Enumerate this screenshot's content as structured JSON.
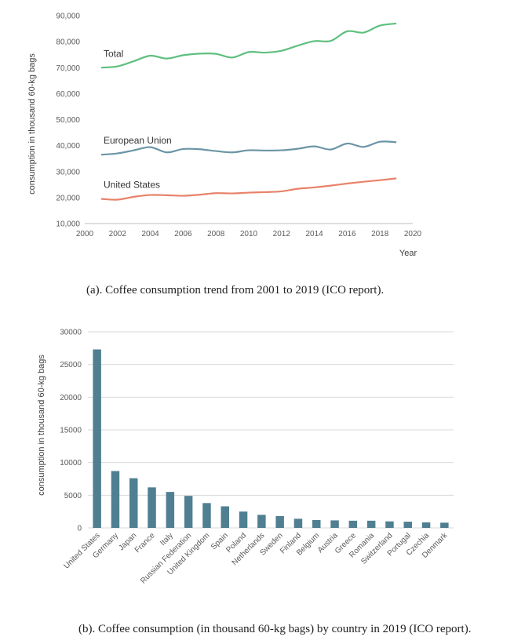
{
  "chart_data": [
    {
      "type": "line",
      "title": "",
      "xlabel": "Year",
      "ylabel": "consumption in thousand 60-kg bags",
      "xlim": [
        2000,
        2020
      ],
      "ylim": [
        10000,
        90000
      ],
      "x_ticks": [
        "2000",
        "2002",
        "2004",
        "2006",
        "2008",
        "2010",
        "2012",
        "2014",
        "2016",
        "2018",
        "2020"
      ],
      "y_ticks": [
        "10,000",
        "20,000",
        "30,000",
        "40,000",
        "50,000",
        "60,000",
        "70,000",
        "80,000",
        "90,000"
      ],
      "x": [
        2001,
        2002,
        2003,
        2004,
        2005,
        2006,
        2007,
        2008,
        2009,
        2010,
        2011,
        2012,
        2013,
        2014,
        2015,
        2016,
        2017,
        2018,
        2019
      ],
      "series": [
        {
          "name": "Total",
          "color": "#5fbf7f",
          "values": [
            70000,
            70500,
            72500,
            74600,
            73500,
            74800,
            75400,
            75300,
            73900,
            76000,
            75800,
            76500,
            78500,
            80200,
            80300,
            84000,
            83500,
            86200,
            87000
          ]
        },
        {
          "name": "European Union",
          "color": "#6b95a6",
          "values": [
            36500,
            37000,
            38200,
            39400,
            37400,
            38700,
            38600,
            37900,
            37400,
            38200,
            38100,
            38200,
            38800,
            39700,
            38500,
            40800,
            39500,
            41500,
            41300
          ]
        },
        {
          "name": "United States",
          "color": "#e8826a",
          "values": [
            19500,
            19200,
            20300,
            21000,
            20900,
            20700,
            21100,
            21700,
            21600,
            21900,
            22100,
            22400,
            23400,
            23900,
            24600,
            25400,
            26100,
            26700,
            27400
          ]
        }
      ],
      "grid": false,
      "legend": "inline-labels"
    },
    {
      "type": "bar",
      "title": "",
      "ylabel": "consumption in thousand 60-kg bags",
      "ylim": [
        0,
        30000
      ],
      "y_ticks": [
        "0",
        "5000",
        "10000",
        "15000",
        "20000",
        "25000",
        "30000"
      ],
      "color": "#4f7f91",
      "categories": [
        "United States",
        "Germany",
        "Japan",
        "France",
        "Italy",
        "Russian Federation",
        "United Kingdom",
        "Spain",
        "Poland",
        "Netherlands",
        "Sweden",
        "Finland",
        "Belgium",
        "Austria",
        "Greece",
        "Romania",
        "Switzerland",
        "Portugal",
        "Czechia",
        "Denmark"
      ],
      "values": [
        27300,
        8700,
        7600,
        6200,
        5500,
        4900,
        3800,
        3300,
        2500,
        2000,
        1800,
        1400,
        1200,
        1150,
        1100,
        1100,
        1000,
        950,
        850,
        800
      ],
      "grid": true
    }
  ],
  "captions": {
    "a": "(a). Coffee consumption trend from 2001 to 2019 (ICO report).",
    "b": "(b). Coffee consumption (in thousand 60-kg bags) by country in 2019 (ICO report)."
  }
}
